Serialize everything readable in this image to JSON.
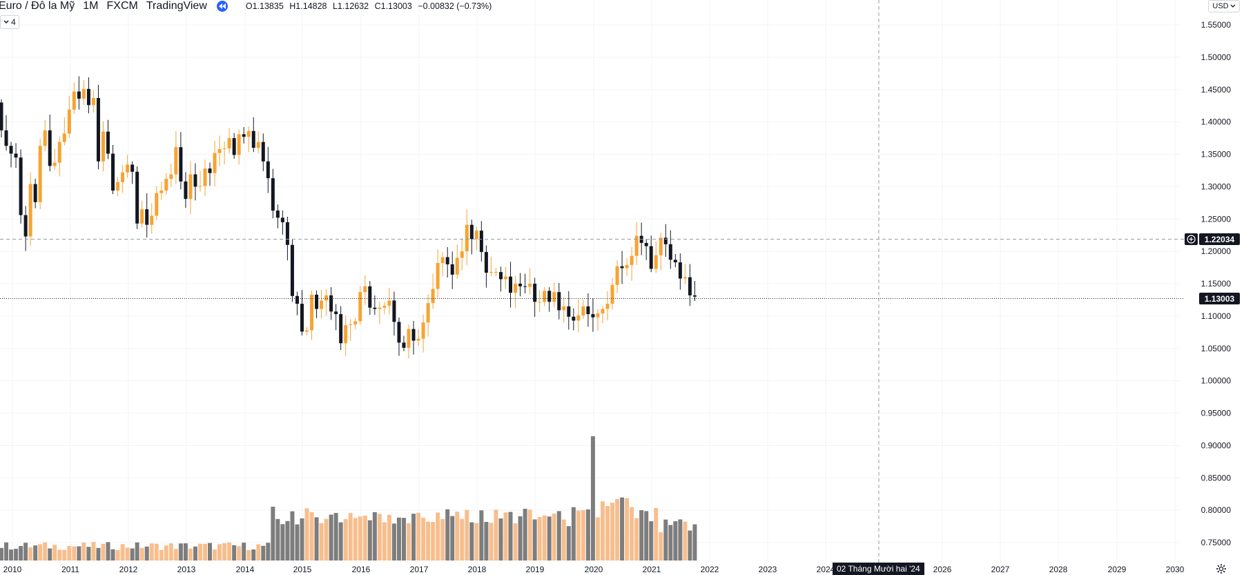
{
  "header": {
    "symbol": "Euro / Đô la Mỹ",
    "interval": "1M",
    "exchange": "FXCM",
    "source": "TradingView",
    "open": "O1.13835",
    "high": "H1.14828",
    "low": "L1.12632",
    "close": "C1.13003",
    "change": "−0.00832 (−0.73%)",
    "indicator_count": "4",
    "currency": "USD"
  },
  "tags": {
    "crosshair_price": "1.22034",
    "last_price": "1.13003",
    "crosshair_date": "02 Tháng Mười hai '24"
  },
  "colors": {
    "up": "#f7a332",
    "down": "#131722",
    "volume_up": "#f7be8d",
    "volume_down": "#7d7d7d",
    "grid": "#f0f3fa",
    "axis_text": "#131722"
  },
  "chart_data": {
    "type": "candlestick",
    "ylim": [
      0.73,
      1.57
    ],
    "yticks": [
      "1.55000",
      "1.50000",
      "1.45000",
      "1.40000",
      "1.35000",
      "1.30000",
      "1.25000",
      "1.20000",
      "1.15000",
      "1.10000",
      "1.05000",
      "1.00000",
      "0.95000",
      "0.90000",
      "0.85000",
      "0.80000",
      "0.75000"
    ],
    "xticks": [
      "2010",
      "2011",
      "2012",
      "2013",
      "2014",
      "2015",
      "2016",
      "2017",
      "2018",
      "2019",
      "2020",
      "2021",
      "2022",
      "2023",
      "2024",
      "2026",
      "2027",
      "2028",
      "2029",
      "2030"
    ],
    "close_series_start": "2010-01",
    "closes": [
      1.387,
      1.363,
      1.351,
      1.345,
      1.256,
      1.223,
      1.304,
      1.276,
      1.363,
      1.387,
      1.332,
      1.337,
      1.369,
      1.382,
      1.419,
      1.447,
      1.436,
      1.451,
      1.426,
      1.437,
      1.339,
      1.385,
      1.351,
      1.294,
      1.307,
      1.322,
      1.334,
      1.323,
      1.243,
      1.265,
      1.241,
      1.255,
      1.29,
      1.294,
      1.312,
      1.319,
      1.361,
      1.308,
      1.281,
      1.319,
      1.3,
      1.301,
      1.328,
      1.321,
      1.352,
      1.358,
      1.359,
      1.375,
      1.349,
      1.381,
      1.377,
      1.386,
      1.36,
      1.369,
      1.339,
      1.313,
      1.263,
      1.252,
      1.245,
      1.21,
      1.131,
      1.119,
      1.076,
      1.078,
      1.133,
      1.111,
      1.124,
      1.132,
      1.107,
      1.103,
      1.058,
      1.086,
      1.087,
      1.092,
      1.137,
      1.146,
      1.113,
      1.111,
      1.113,
      1.116,
      1.124,
      1.091,
      1.059,
      1.051,
      1.08,
      1.062,
      1.065,
      1.09,
      1.12,
      1.142,
      1.182,
      1.191,
      1.18,
      1.164,
      1.19,
      1.2,
      1.241,
      1.219,
      1.232,
      1.199,
      1.167,
      1.168,
      1.168,
      1.157,
      1.161,
      1.136,
      1.15,
      1.146,
      1.145,
      1.15,
      1.122,
      1.122,
      1.139,
      1.122,
      1.137,
      1.109,
      1.115,
      1.099,
      1.093,
      1.101,
      1.115,
      1.103,
      1.098,
      1.104,
      1.111,
      1.119,
      1.148,
      1.177,
      1.174,
      1.179,
      1.193,
      1.224,
      1.213,
      1.208,
      1.173,
      1.194,
      1.221,
      1.211,
      1.187,
      1.183,
      1.158,
      1.16,
      1.132,
      1.13
    ],
    "volume_relative": "bars under price, spike in March 2020"
  }
}
